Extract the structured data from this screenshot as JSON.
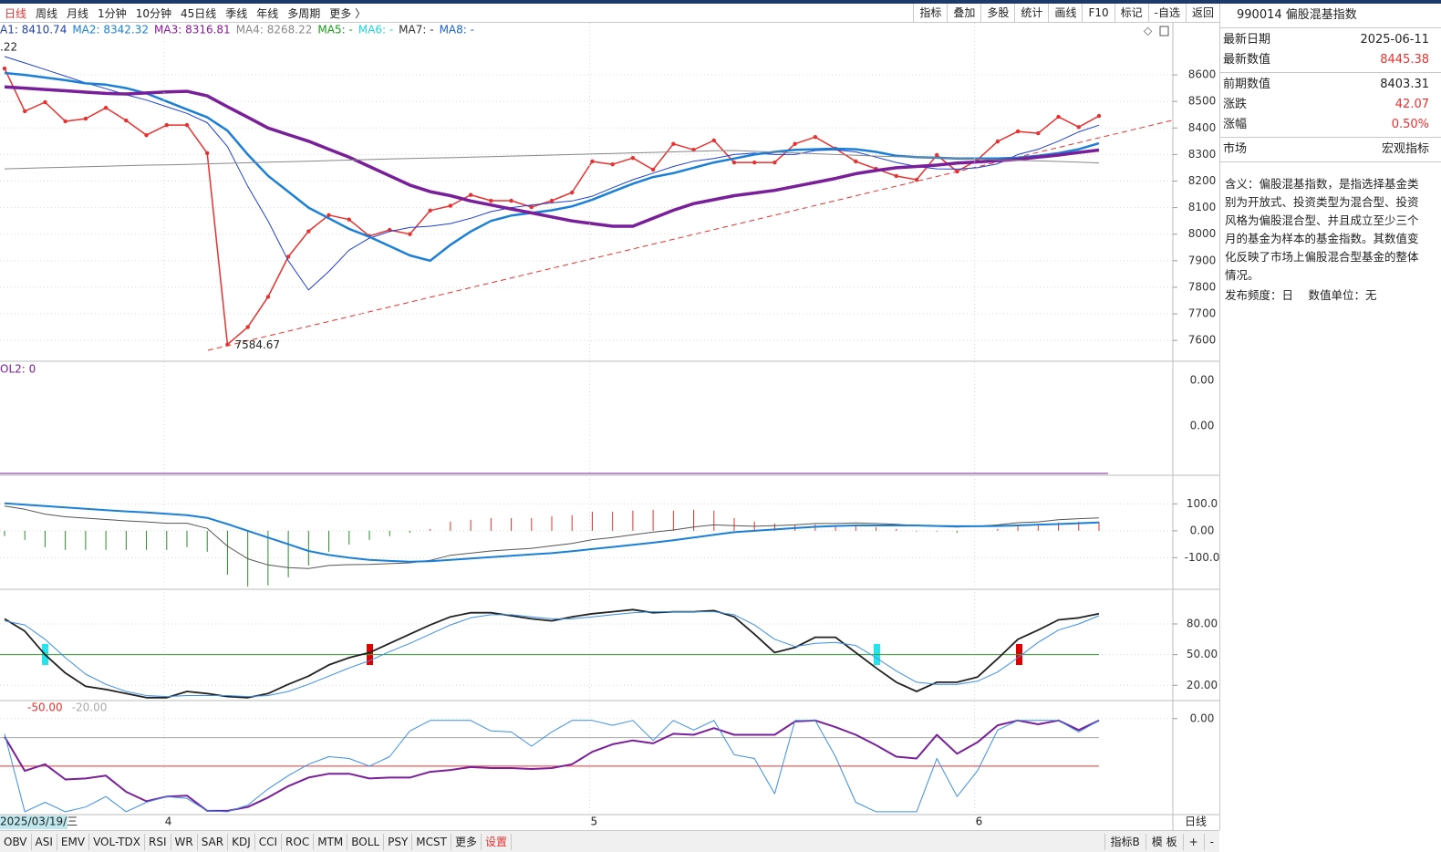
{
  "toolbar": {
    "periods": [
      "日线",
      "周线",
      "月线",
      "1分钟",
      "10分钟",
      "45日线",
      "季线",
      "年线",
      "多周期",
      "更多 〉"
    ],
    "active": 0,
    "active_color": "#e8312f",
    "tools": [
      "指标",
      "叠加",
      "多股",
      "统计",
      "画线",
      "F10",
      "标记",
      "-自选",
      "返回"
    ]
  },
  "info_panel": {
    "title": "990014 偏股混基指数",
    "groups": [
      [
        {
          "label": "最新日期",
          "value": "2025-06-11"
        },
        {
          "label": "最新数值",
          "value": "8445.38",
          "color": "#e8312f"
        }
      ],
      [
        {
          "label": "前期数值",
          "value": "8403.31"
        },
        {
          "label": "涨跌",
          "value": "42.07",
          "color": "#e8312f"
        },
        {
          "label": "涨幅",
          "value": "0.50%",
          "color": "#e8312f"
        }
      ],
      [
        {
          "label": "市场",
          "value": "宏观指标"
        }
      ]
    ],
    "description": "含义：偏股混基指数，是指选择基金类别为开放式、投资类型为混合型、投资风格为偏股混合型、并且成立至少三个月的基金为样本的基金指数。其数值变化反映了市场上偏股混合型基金的整体情况。",
    "footer": "发布频度：日　 数值单位：无"
  },
  "vol_panel": {
    "legend": "OL2: 0",
    "tick_labels": [
      "0.00",
      "0.00"
    ],
    "color": "#7a1f9a"
  },
  "period_label": "日线",
  "bottom_bar": {
    "indicators": [
      "OBV",
      "ASI",
      "EMV",
      "VOL-TDX",
      "RSI",
      "WR",
      "SAR",
      "KDJ",
      "CCI",
      "ROC",
      "MTM",
      "BOLL",
      "PSY",
      "MCST",
      "更多",
      "设置"
    ],
    "highlight": 15,
    "highlight_color": "#e8312f",
    "right": [
      "指标B",
      "模 板",
      "+",
      "-"
    ]
  },
  "chart_data": [
    {
      "type": "line",
      "high_label": ".22",
      "low_label": "7584.67",
      "categories": [
        "2025/03/19/三",
        null,
        null,
        null,
        null,
        null,
        null,
        null,
        "4",
        null,
        null,
        null,
        null,
        null,
        null,
        null,
        null,
        null,
        null,
        null,
        null,
        null,
        null,
        null,
        null,
        null,
        null,
        null,
        null,
        "5",
        null,
        null,
        null,
        null,
        null,
        null,
        null,
        null,
        null,
        null,
        null,
        null,
        null,
        null,
        null,
        null,
        null,
        null,
        "6",
        null,
        null,
        null,
        null,
        null,
        null
      ],
      "ylim": [
        7525,
        8796
      ],
      "yticks": [
        8600,
        8500,
        8400,
        8300,
        8200,
        8100,
        8000,
        7900,
        7800,
        7700,
        7600
      ],
      "grid": true,
      "legend": [
        {
          "text": "A1: 8410.74",
          "color": "#1f3fb0"
        },
        {
          "text": "MA2: 8342.32",
          "color": "#1a7fd6"
        },
        {
          "text": "MA3: 8316.81",
          "color": "#8b1a9a"
        },
        {
          "text": "MA4: 8268.22",
          "color": "#888888"
        },
        {
          "text": "MA5: -",
          "color": "#1a9a1a"
        },
        {
          "text": "MA6: -",
          "color": "#22d3dd"
        },
        {
          "text": "MA7: -",
          "color": "#333333"
        },
        {
          "text": "MA8: -",
          "color": "#1a5fd6"
        }
      ],
      "series": [
        {
          "style": "line",
          "color": "#e8312f",
          "width": 1.5,
          "markers": true,
          "values": [
            8624,
            8463,
            8497,
            8425,
            8435,
            8476,
            8428,
            8373,
            8411,
            8411,
            8305,
            7584.67,
            7650,
            7764,
            7915,
            8011,
            8072,
            8055,
            7993,
            8016,
            8000,
            8089,
            8107,
            8148,
            8126,
            8126,
            8102,
            8126,
            8157,
            8274,
            8263,
            8287,
            8243,
            8340,
            8318,
            8353,
            8270,
            8270,
            8270,
            8340,
            8366,
            8322,
            8274,
            8246,
            8219,
            8205,
            8298,
            8236,
            8280,
            8349,
            8387,
            8380,
            8442,
            8403.31,
            8445.38
          ]
        },
        {
          "style": "line",
          "color": "#1f3fd0",
          "width": 1,
          "values": [
            8669,
            8645,
            8620,
            8595,
            8570,
            8548,
            8525,
            8505,
            8480,
            8455,
            8420,
            8330,
            8180,
            8050,
            7900,
            7790,
            7860,
            7940,
            7985,
            8010,
            8025,
            8030,
            8040,
            8060,
            8085,
            8100,
            8110,
            8118,
            8125,
            8143,
            8175,
            8205,
            8230,
            8255,
            8275,
            8285,
            8300,
            8305,
            8300,
            8300,
            8315,
            8318,
            8310,
            8290,
            8270,
            8255,
            8246,
            8245,
            8250,
            8265,
            8300,
            8320,
            8350,
            8385,
            8410.74
          ]
        },
        {
          "style": "line",
          "color": "#1a7fd6",
          "width": 2.5,
          "values": [
            8607,
            8600,
            8590,
            8580,
            8568,
            8563,
            8550,
            8530,
            8500,
            8470,
            8440,
            8390,
            8300,
            8220,
            8160,
            8100,
            8060,
            8020,
            7990,
            7955,
            7920,
            7900,
            7960,
            8010,
            8050,
            8070,
            8080,
            8090,
            8105,
            8130,
            8160,
            8190,
            8215,
            8230,
            8250,
            8270,
            8285,
            8300,
            8310,
            8318,
            8320,
            8322,
            8320,
            8310,
            8295,
            8290,
            8288,
            8285,
            8285,
            8285,
            8288,
            8295,
            8305,
            8320,
            8342.32
          ]
        },
        {
          "style": "line",
          "color": "#7a1f9a",
          "width": 3.5,
          "values": [
            8555,
            8550,
            8545,
            8540,
            8535,
            8530,
            8528,
            8532,
            8536,
            8538,
            8521,
            8480,
            8440,
            8400,
            8375,
            8350,
            8320,
            8290,
            8255,
            8220,
            8185,
            8160,
            8145,
            8125,
            8110,
            8095,
            8080,
            8065,
            8050,
            8040,
            8030,
            8030,
            8060,
            8090,
            8115,
            8130,
            8145,
            8155,
            8165,
            8180,
            8195,
            8210,
            8228,
            8240,
            8250,
            8255,
            8260,
            8268,
            8272,
            8277,
            8282,
            8290,
            8298,
            8308,
            8316.81
          ]
        },
        {
          "style": "line",
          "color": "#888888",
          "width": 1,
          "values": [
            8246,
            8248,
            8250,
            8252,
            8254,
            8256,
            8258,
            8260,
            8261,
            8263,
            8265,
            8267,
            8269,
            8271,
            8273,
            8275,
            8277,
            8279,
            8281,
            8283,
            8285,
            8287,
            8288,
            8290,
            8292,
            8294,
            8296,
            8298,
            8300,
            8302,
            8304,
            8306,
            8308,
            8310,
            8312,
            8314,
            8315,
            8312,
            8309,
            8306,
            8303,
            8300,
            8297,
            8294,
            8292,
            8291,
            8288,
            8286,
            8283,
            8280,
            8278,
            8276,
            8274,
            8271,
            8268.22
          ]
        }
      ]
    },
    {
      "type": "macd",
      "ylim": [
        -214,
        203
      ],
      "yticks": [
        {
          "value": 100,
          "label": "100.0"
        },
        {
          "value": 0,
          "label": "0.00"
        },
        {
          "value": -100,
          "label": "-100.0"
        }
      ],
      "grid": true,
      "series": [
        {
          "style": "bar",
          "up_color": "#e8312f",
          "down_color": "#2a8a2a",
          "values": [
            -20,
            -34,
            -61,
            -71,
            -71,
            -71,
            -71,
            -71,
            -71,
            -61,
            -78,
            -163,
            -207,
            -203,
            -173,
            -129,
            -78,
            -51,
            -34,
            -20,
            -7,
            7,
            34,
            41,
            47,
            47,
            47,
            54,
            58,
            71,
            71,
            75,
            78,
            75,
            78,
            75,
            47,
            34,
            27,
            24,
            24,
            17,
            17,
            14,
            7,
            -3,
            -3,
            -7,
            0,
            7,
            20,
            20,
            31,
            34,
            34
          ]
        },
        {
          "style": "line",
          "color": "#555555",
          "width": 1,
          "values": [
            92,
            80,
            62,
            52,
            47,
            42,
            37,
            33,
            28,
            28,
            9,
            -57,
            -104,
            -127,
            -137,
            -140,
            -129,
            -126,
            -125,
            -122,
            -119,
            -110,
            -91,
            -83,
            -75,
            -70,
            -65,
            -56,
            -47,
            -33,
            -25,
            -15,
            -5,
            3,
            14,
            22,
            19,
            17,
            19,
            22,
            27,
            27,
            29,
            27,
            24,
            19,
            17,
            14,
            17,
            22,
            30,
            33,
            41,
            45,
            48
          ]
        },
        {
          "style": "line",
          "color": "#1a7fd6",
          "width": 2,
          "values": [
            102,
            97,
            92,
            87,
            82,
            77,
            72,
            68,
            63,
            58,
            48,
            25,
            0,
            -25,
            -50,
            -75,
            -90,
            -100,
            -108,
            -112,
            -115,
            -113,
            -108,
            -103,
            -98,
            -93,
            -88,
            -83,
            -76,
            -68,
            -60,
            -52,
            -44,
            -35,
            -25,
            -15,
            -5,
            0,
            5,
            10,
            15,
            18,
            20,
            20,
            20,
            20,
            18,
            17,
            17,
            18,
            20,
            23,
            25,
            28,
            31
          ]
        }
      ]
    },
    {
      "type": "line",
      "ylim": [
        6,
        113
      ],
      "yticks": [
        {
          "value": 80,
          "label": "80.00"
        },
        {
          "value": 50,
          "label": "50.00"
        },
        {
          "value": 20,
          "label": "20.00"
        }
      ],
      "grid": true,
      "reference_lines": [
        {
          "value": 50,
          "color": "#2ca02c"
        }
      ],
      "series": [
        {
          "style": "line",
          "color": "#222222",
          "width": 1.8,
          "values": [
            85,
            73,
            50,
            32,
            19,
            16,
            12,
            8,
            8,
            14,
            12,
            9,
            8,
            12,
            21,
            29,
            40,
            47,
            52,
            61,
            70,
            79,
            87,
            91,
            91,
            88,
            85,
            83,
            87,
            90,
            92,
            94,
            91,
            92,
            92,
            93,
            87,
            70,
            52,
            57,
            67,
            67,
            52,
            37,
            23,
            14,
            23,
            23,
            28,
            46,
            65,
            74,
            84,
            86,
            90
          ]
        },
        {
          "style": "line",
          "color": "#3a8ee6",
          "width": 1,
          "values": [
            83,
            79,
            65,
            47,
            31,
            21,
            14,
            10,
            9,
            10,
            10,
            10,
            9,
            10,
            14,
            21,
            29,
            37,
            44,
            53,
            61,
            70,
            79,
            86,
            89,
            89,
            87,
            85,
            85,
            87,
            89,
            91,
            92,
            92,
            92,
            92,
            89,
            79,
            65,
            58,
            61,
            62,
            59,
            47,
            34,
            23,
            21,
            21,
            24,
            33,
            47,
            62,
            74,
            80,
            88
          ]
        }
      ]
    },
    {
      "type": "line",
      "ylim": [
        -100,
        18
      ],
      "yticks": [
        {
          "value": 0,
          "label": "0.00"
        }
      ],
      "grid": true,
      "reference_lines": [
        {
          "value": -50,
          "label": "-50.00",
          "color": "#e8312f"
        },
        {
          "value": -20,
          "label": "-20.00",
          "color": "#aaaaaa"
        }
      ],
      "series": [
        {
          "style": "line",
          "color": "#7a1f9a",
          "width": 2,
          "values": [
            -19,
            -55,
            -48,
            -64,
            -63,
            -60,
            -77,
            -87,
            -82,
            -81,
            -97,
            -97,
            -93,
            -83,
            -71,
            -62,
            -58,
            -58,
            -63,
            -62,
            -62,
            -56,
            -54,
            -51,
            -52,
            -52,
            -53,
            -52,
            -48,
            -35,
            -27,
            -23,
            -26,
            -16,
            -17,
            -10,
            -17,
            -17,
            -17,
            -3,
            -2,
            -9,
            -17,
            -28,
            -40,
            -42,
            -17,
            -37,
            -25,
            -7,
            -2,
            -6,
            -2,
            -12,
            -2
          ]
        },
        {
          "style": "line",
          "color": "#3a8ee6",
          "width": 1,
          "values": [
            -16,
            -98,
            -88,
            -98,
            -93,
            -82,
            -98,
            -88,
            -82,
            -84,
            -97,
            -98,
            -91,
            -74,
            -60,
            -48,
            -40,
            -42,
            -50,
            -40,
            -13,
            -2,
            -2,
            -2,
            -13,
            -14,
            -29,
            -14,
            -2,
            -2,
            -7,
            -2,
            -23,
            -2,
            -12,
            -2,
            -38,
            -42,
            -79,
            -2,
            -2,
            -40,
            -88,
            -98,
            -98,
            -98,
            -42,
            -82,
            -55,
            -12,
            -2,
            -2,
            -2,
            -14,
            -2
          ]
        }
      ]
    }
  ]
}
